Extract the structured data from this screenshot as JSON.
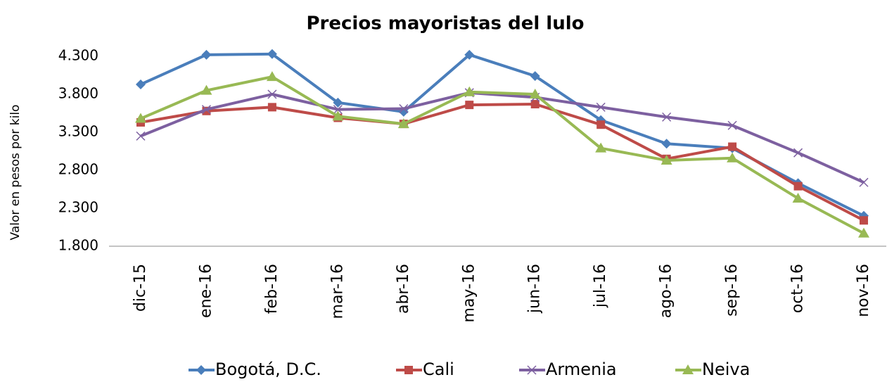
{
  "chart_data": {
    "type": "line",
    "title": "Precios mayoristas del lulo",
    "y_label": "Valor en pesos por kilo",
    "categories": [
      "dic-15",
      "ene-16",
      "feb-16",
      "mar-16",
      "abr-16",
      "may-16",
      "jun-16",
      "jul-16",
      "ago-16",
      "sep-16",
      "oct-16",
      "nov-16"
    ],
    "series": [
      {
        "name": "Bogotá, D.C.",
        "color": "#4a7ebb",
        "marker": "diamond",
        "values": [
          3930,
          4320,
          4330,
          3690,
          3570,
          4320,
          4040,
          3460,
          3150,
          3090,
          2630,
          2200
        ]
      },
      {
        "name": "Cali",
        "color": "#be4b48",
        "marker": "square",
        "values": [
          3430,
          3580,
          3630,
          3490,
          3410,
          3660,
          3670,
          3400,
          2950,
          3110,
          2590,
          2140
        ]
      },
      {
        "name": "Armenia",
        "color": "#7d60a0",
        "marker": "x",
        "values": [
          3250,
          3600,
          3800,
          3600,
          3610,
          3820,
          3760,
          3630,
          3500,
          3390,
          3030,
          2640
        ]
      },
      {
        "name": "Neiva",
        "color": "#98b954",
        "marker": "triangle",
        "values": [
          3480,
          3850,
          4030,
          3510,
          3410,
          3830,
          3800,
          3090,
          2930,
          2960,
          2430,
          1970
        ]
      }
    ],
    "ylim": [
      1800,
      4300
    ],
    "yticks": [
      {
        "value": 1800,
        "label": "1.800"
      },
      {
        "value": 2300,
        "label": "2.300"
      },
      {
        "value": 2800,
        "label": "2.800"
      },
      {
        "value": 3300,
        "label": "3.300"
      },
      {
        "value": 3800,
        "label": "3.800"
      },
      {
        "value": 4300,
        "label": "4.300"
      }
    ],
    "grid": false,
    "legend": "bottom"
  }
}
